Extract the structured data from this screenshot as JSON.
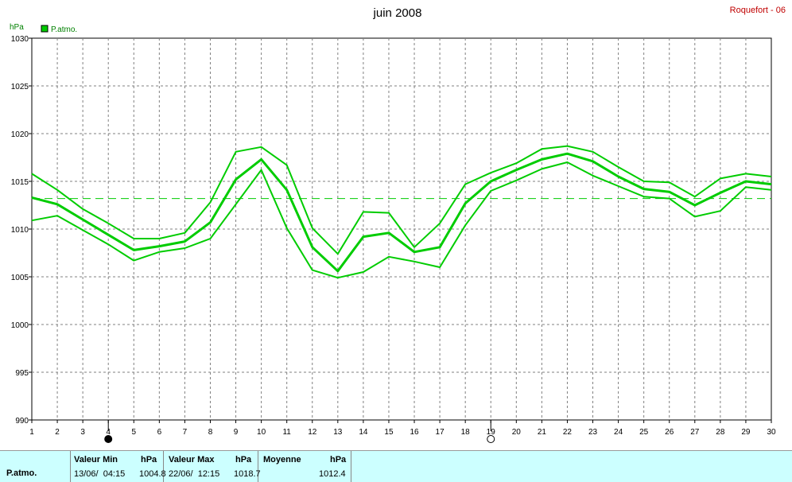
{
  "header": {
    "title": "juin 2008",
    "station": "Roquefort - 06"
  },
  "legend": {
    "label": "P.atmo.",
    "color": "#00cc00"
  },
  "chart_data": {
    "type": "line",
    "ylabel": "hPa",
    "ylim": [
      990,
      1030
    ],
    "xlim": [
      1,
      30
    ],
    "yticks": [
      990,
      995,
      1000,
      1005,
      1010,
      1015,
      1020,
      1025,
      1030
    ],
    "xticks": [
      1,
      2,
      3,
      4,
      5,
      6,
      7,
      8,
      9,
      10,
      11,
      12,
      13,
      14,
      15,
      16,
      17,
      18,
      19,
      20,
      21,
      22,
      23,
      24,
      25,
      26,
      27,
      28,
      29,
      30
    ],
    "grid": true,
    "average_line": 1013.2,
    "moon_markers": [
      {
        "day": 4,
        "phase": "new"
      },
      {
        "day": 19,
        "phase": "full"
      }
    ],
    "x": [
      1,
      2,
      3,
      4,
      5,
      6,
      7,
      8,
      9,
      10,
      11,
      12,
      13,
      14,
      15,
      16,
      17,
      18,
      19,
      20,
      21,
      22,
      23,
      24,
      25,
      26,
      27,
      28,
      29,
      30
    ],
    "series": [
      {
        "name": "max",
        "values": [
          1015.8,
          1014.1,
          1012.1,
          1010.6,
          1009.0,
          1009.0,
          1009.6,
          1012.8,
          1018.1,
          1018.6,
          1016.7,
          1010.1,
          1007.4,
          1011.8,
          1011.7,
          1008.1,
          1010.6,
          1014.7,
          1015.9,
          1016.9,
          1018.4,
          1018.7,
          1018.1,
          1016.5,
          1015.0,
          1014.9,
          1013.4,
          1015.3,
          1015.8,
          1015.5
        ]
      },
      {
        "name": "moyenne",
        "values": [
          1013.3,
          1012.6,
          1011.0,
          1009.4,
          1007.8,
          1008.2,
          1008.7,
          1010.7,
          1015.2,
          1017.3,
          1014.1,
          1008.1,
          1005.6,
          1009.2,
          1009.6,
          1007.6,
          1008.1,
          1012.7,
          1015.0,
          1016.2,
          1017.3,
          1017.9,
          1017.1,
          1015.5,
          1014.2,
          1013.9,
          1012.5,
          1013.8,
          1015.0,
          1014.7
        ]
      },
      {
        "name": "min",
        "values": [
          1010.9,
          1011.4,
          1009.9,
          1008.4,
          1006.7,
          1007.6,
          1008.0,
          1009.0,
          1012.6,
          1016.2,
          1010.1,
          1005.7,
          1004.9,
          1005.5,
          1007.1,
          1006.6,
          1006.0,
          1010.4,
          1014.0,
          1015.1,
          1016.3,
          1017.0,
          1015.6,
          1014.5,
          1013.4,
          1013.2,
          1011.3,
          1011.9,
          1014.4,
          1014.1
        ]
      }
    ]
  },
  "footer": {
    "label": "P.atmo.",
    "min_header": "Valeur Min",
    "min_unit": "hPa",
    "min_date": "13/06/  04:15",
    "min_value": "1004.8",
    "max_header": "Valeur Max",
    "max_unit": "hPa",
    "max_date": "22/06/  12:15",
    "max_value": "1018.7",
    "avg_header": "Moyenne",
    "avg_unit": "hPa",
    "avg_value": "1012.4"
  }
}
